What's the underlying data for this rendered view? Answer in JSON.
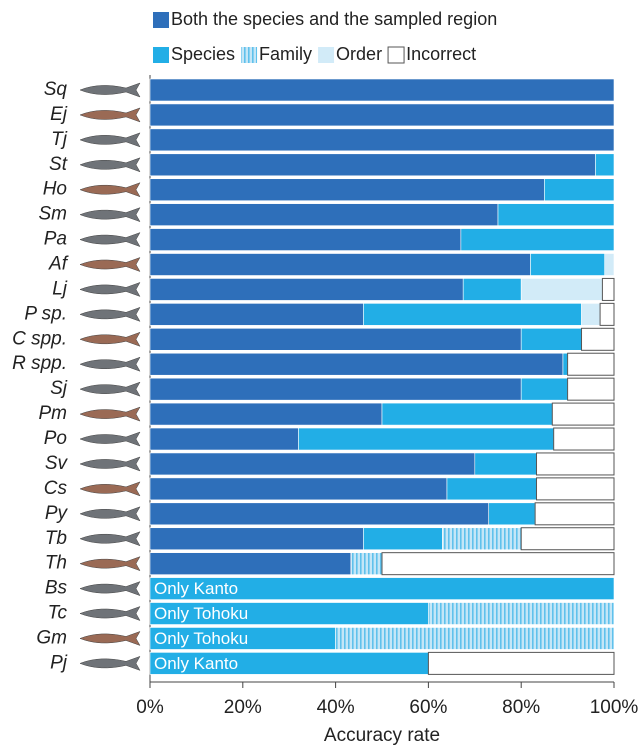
{
  "chart_data": {
    "type": "stacked-bar-horizontal",
    "categories": [
      "Sq",
      "Ej",
      "Tj",
      "St",
      "Ho",
      "Sm",
      "Pa",
      "Af",
      "Lj",
      "P sp.",
      "C spp.",
      "R spp.",
      "Sj",
      "Pm",
      "Po",
      "Sv",
      "Cs",
      "Py",
      "Tb",
      "Th",
      "Bs",
      "Tc",
      "Gm",
      "Pj"
    ],
    "series": [
      {
        "name": "Both the species and the sampled region",
        "color": "#2e6fba",
        "values": [
          100,
          100,
          100,
          96,
          85,
          75,
          67,
          82,
          67.5,
          46,
          80,
          89,
          80,
          50,
          32,
          70,
          64,
          73,
          46,
          43.3,
          0,
          0,
          0,
          0
        ]
      },
      {
        "name": "Species",
        "color": "#22aee6",
        "values": [
          0,
          0,
          0,
          4,
          15,
          25,
          33,
          16,
          12.5,
          47,
          13,
          1,
          10,
          36.7,
          55,
          13.3,
          19.3,
          10,
          17,
          0,
          100,
          60,
          40,
          60
        ]
      },
      {
        "name": "Family",
        "color": "#22aee6",
        "hatch": true,
        "values": [
          0,
          0,
          0,
          0,
          0,
          0,
          0,
          0,
          0,
          0,
          0,
          0,
          0,
          0,
          0,
          0,
          0,
          0,
          17,
          6.7,
          0,
          40,
          60,
          0
        ]
      },
      {
        "name": "Order",
        "color": "#d2ebf8",
        "values": [
          0,
          0,
          0,
          0,
          0,
          0,
          0,
          2,
          17.5,
          4,
          0,
          0,
          0,
          0,
          0,
          0,
          0,
          0,
          0,
          0,
          0,
          0,
          0,
          0
        ]
      },
      {
        "name": "Incorrect",
        "color": "#ffffff",
        "values": [
          0,
          0,
          0,
          0,
          0,
          0,
          0,
          0,
          2.5,
          3,
          7,
          10,
          10,
          13.3,
          13,
          16.7,
          16.7,
          17,
          20,
          50,
          0,
          0,
          0,
          40
        ]
      }
    ],
    "bar_labels": [
      null,
      null,
      null,
      null,
      null,
      null,
      null,
      null,
      null,
      null,
      null,
      null,
      null,
      null,
      null,
      null,
      null,
      null,
      null,
      null,
      "Only Kanto",
      "Only Tohoku",
      "Only Tohoku",
      "Only Kanto"
    ],
    "xlabel": "Accuracy rate",
    "xlim": [
      0,
      100
    ],
    "xticks": [
      {
        "value": 0,
        "label": "0%"
      },
      {
        "value": 20,
        "label": "20%"
      },
      {
        "value": 40,
        "label": "40%"
      },
      {
        "value": 60,
        "label": "60%"
      },
      {
        "value": 80,
        "label": "80%"
      },
      {
        "value": 100,
        "label": "100%"
      }
    ]
  }
}
